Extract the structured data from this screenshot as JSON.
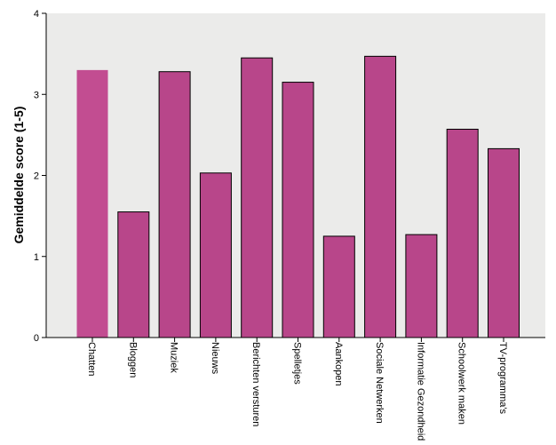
{
  "chart_data": {
    "type": "bar",
    "title": "",
    "xlabel": "",
    "ylabel": "Gemiddelde score (1-5)",
    "ylim": [
      0,
      4
    ],
    "yticks": [
      0,
      1,
      2,
      3,
      4
    ],
    "grid": false,
    "categories": [
      "Chatten",
      "Bloggen",
      "Muziek",
      "Nieuws",
      "Berichten versturen",
      "Spelletjes",
      "Aankopen",
      "Sociale Netwerken",
      "Informatie Gezondheid",
      "Schoolwerk maken",
      "TV-programma's"
    ],
    "values": [
      3.3,
      1.55,
      3.28,
      2.03,
      3.45,
      3.15,
      1.25,
      3.47,
      1.27,
      2.57,
      2.33
    ],
    "highlight_index": 0,
    "colors": {
      "bar": "#b8468a",
      "bar_highlight": "#c24d91",
      "plot_bg": "#ebebea",
      "edge": "#000000"
    }
  }
}
